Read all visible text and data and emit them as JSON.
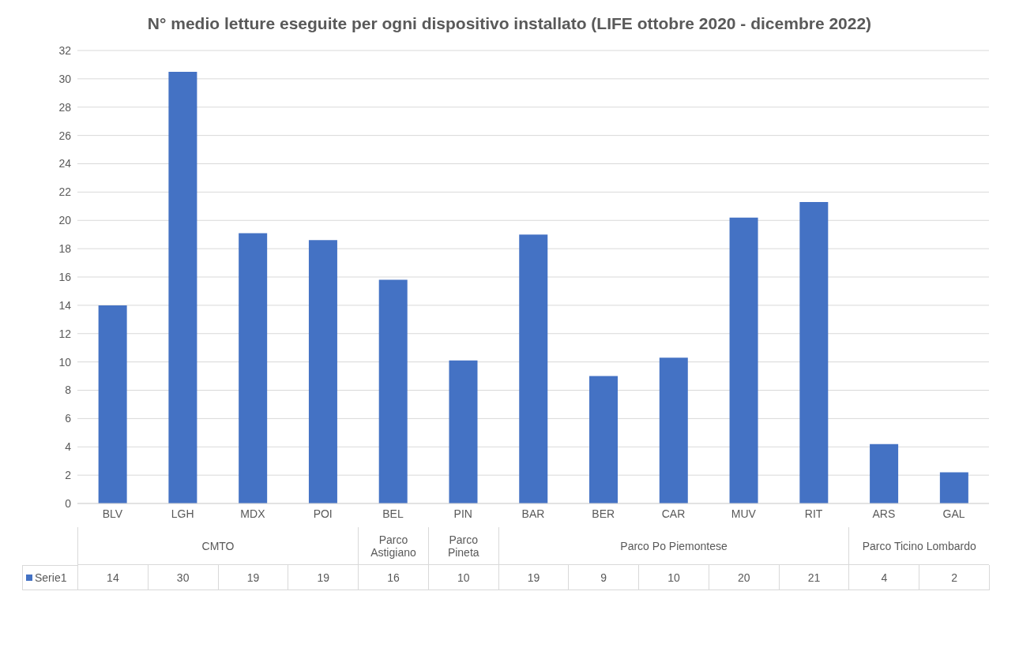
{
  "chart_data": {
    "type": "bar",
    "title": "N° medio letture eseguite per ogni dispositivo installato (LIFE ottobre 2020 - dicembre 2022)",
    "categories": [
      "BLV",
      "LGH",
      "MDX",
      "POI",
      "BEL",
      "PIN",
      "BAR",
      "BER",
      "CAR",
      "MUV",
      "RIT",
      "ARS",
      "GAL"
    ],
    "series": [
      {
        "name": "Serie1",
        "color": "#4472c4",
        "values": [
          14.0,
          30.5,
          19.1,
          18.6,
          15.8,
          10.1,
          19.0,
          9.0,
          10.3,
          20.2,
          21.3,
          4.2,
          2.2
        ],
        "value_labels": [
          "14",
          "30",
          "19",
          "19",
          "16",
          "10",
          "19",
          "9",
          "10",
          "20",
          "21",
          "4",
          "2"
        ]
      }
    ],
    "annotations": [
      "CMTO",
      "Parco Astigiano",
      "Parco Pineta",
      "Parco Po Piemontese",
      "Parco Ticino Lombardo"
    ],
    "ylim": [
      0,
      32
    ],
    "yticks": [
      0,
      2,
      4,
      6,
      8,
      10,
      12,
      14,
      16,
      18,
      20,
      22,
      24,
      26,
      28,
      30,
      32
    ],
    "grid": "y",
    "legend": "bottom"
  }
}
